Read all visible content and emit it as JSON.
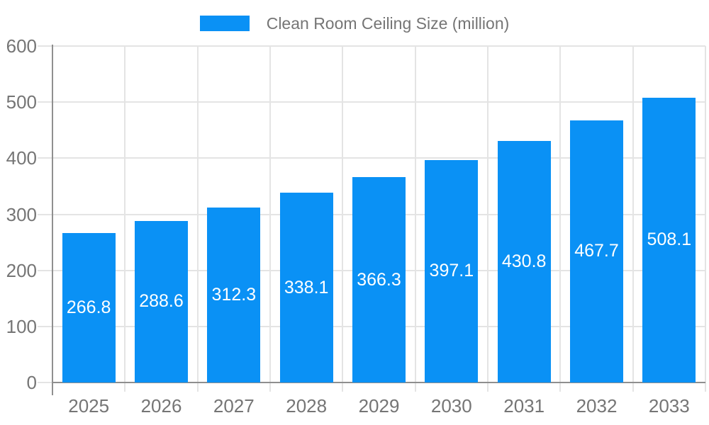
{
  "chart_data": {
    "type": "bar",
    "title": "Clean Room Ceiling Size (million)",
    "legend": [
      "Clean Room Ceiling Size (million)"
    ],
    "legend_position": "top-center",
    "categories": [
      "2025",
      "2026",
      "2027",
      "2028",
      "2029",
      "2030",
      "2031",
      "2032",
      "2033"
    ],
    "series": [
      {
        "name": "Clean Room Ceiling Size (million)",
        "values": [
          266.8,
          288.6,
          312.3,
          338.1,
          366.3,
          397.1,
          430.8,
          467.7,
          508.1
        ]
      }
    ],
    "value_labels": [
      266.8,
      288.6,
      312.3,
      338.1,
      366.3,
      397.1,
      430.8,
      467.7,
      508.1
    ],
    "value_label_position": "inside-center",
    "xlabel": "",
    "ylabel": "",
    "ylim": [
      0,
      600
    ],
    "yticks": [
      0,
      100,
      200,
      300,
      400,
      500,
      600
    ],
    "grid": "horizontal and vertical light gridlines",
    "colors": {
      "bar": "#0a91f5",
      "axis_text": "#757575",
      "legend_text": "#757575",
      "gridline": "#e4e4e4",
      "axis_line": "#8f8f8f",
      "value_label_text": "#ffffff",
      "background": "#ffffff"
    }
  }
}
